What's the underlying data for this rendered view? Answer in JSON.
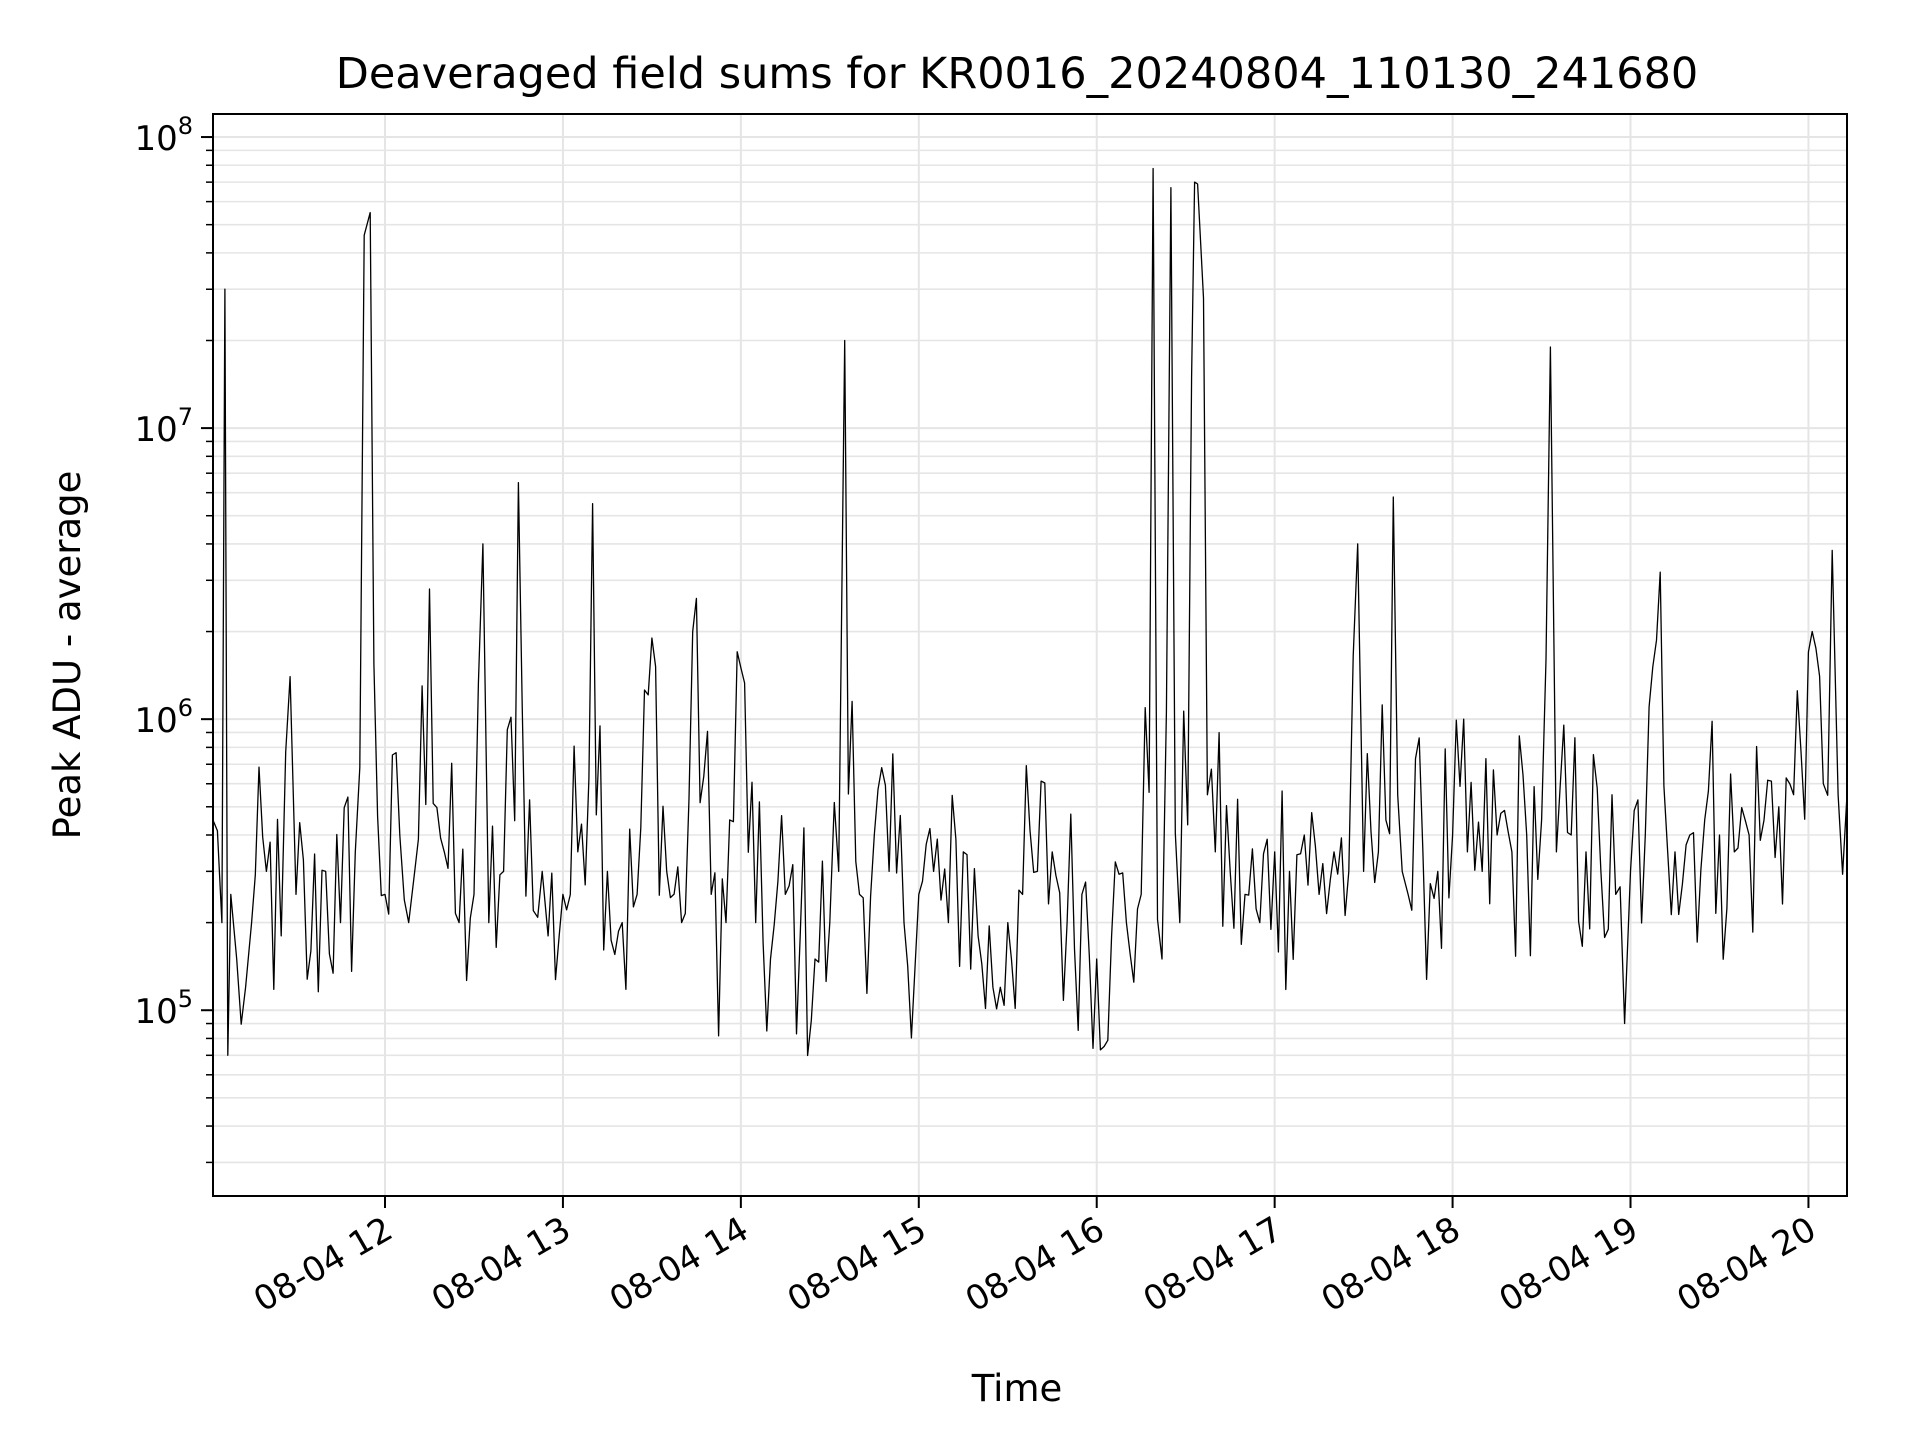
{
  "chart_data": {
    "type": "line",
    "title": "Deaveraged field sums for KR0016_20240804_110130_241680",
    "xlabel": "Time",
    "ylabel": "Peak ADU - average",
    "yscale": "log",
    "ylim": [
      23000,
      120000000
    ],
    "xlim": [
      "2024-08-04 11:02",
      "2024-08-04 20:13"
    ],
    "grid": true,
    "line_color": "#000000",
    "grid_color": "#e5e5e5",
    "x_ticks": [
      {
        "value": "2024-08-04 12:00",
        "label": "08-04 12"
      },
      {
        "value": "2024-08-04 13:00",
        "label": "08-04 13"
      },
      {
        "value": "2024-08-04 14:00",
        "label": "08-04 14"
      },
      {
        "value": "2024-08-04 15:00",
        "label": "08-04 15"
      },
      {
        "value": "2024-08-04 16:00",
        "label": "08-04 16"
      },
      {
        "value": "2024-08-04 17:00",
        "label": "08-04 17"
      },
      {
        "value": "2024-08-04 18:00",
        "label": "08-04 18"
      },
      {
        "value": "2024-08-04 19:00",
        "label": "08-04 19"
      },
      {
        "value": "2024-08-04 20:00",
        "label": "08-04 20"
      }
    ],
    "y_ticks": [
      {
        "value": 100000,
        "base": "10",
        "exp": "5"
      },
      {
        "value": 1000000,
        "base": "10",
        "exp": "6"
      },
      {
        "value": 10000000,
        "base": "10",
        "exp": "7"
      },
      {
        "value": 100000000,
        "base": "10",
        "exp": "8"
      }
    ],
    "series": [
      {
        "x": [
          "2024-08-04 11:02",
          "2024-08-04 11:05",
          "2024-08-04 11:06",
          "2024-08-04 11:07",
          "2024-08-04 11:08",
          "2024-08-04 11:10",
          "2024-08-04 11:13",
          "2024-08-04 11:15",
          "2024-08-04 11:20",
          "2024-08-04 11:25",
          "2024-08-04 11:28",
          "2024-08-04 11:30",
          "2024-08-04 11:35",
          "2024-08-04 11:40",
          "2024-08-04 11:45",
          "2024-08-04 11:50",
          "2024-08-04 11:53",
          "2024-08-04 11:55",
          "2024-08-04 12:00",
          "2024-08-04 12:05",
          "2024-08-04 12:08",
          "2024-08-04 12:10",
          "2024-08-04 12:15",
          "2024-08-04 12:20",
          "2024-08-04 12:25",
          "2024-08-04 12:30",
          "2024-08-04 12:33",
          "2024-08-04 12:35",
          "2024-08-04 12:40",
          "2024-08-04 12:45",
          "2024-08-04 12:50",
          "2024-08-04 12:53",
          "2024-08-04 12:55",
          "2024-08-04 13:00",
          "2024-08-04 13:05",
          "2024-08-04 13:10",
          "2024-08-04 13:15",
          "2024-08-04 13:20",
          "2024-08-04 13:25",
          "2024-08-04 13:30",
          "2024-08-04 13:35",
          "2024-08-04 13:40",
          "2024-08-04 13:45",
          "2024-08-04 13:50",
          "2024-08-04 13:55",
          "2024-08-04 14:00",
          "2024-08-04 14:05",
          "2024-08-04 14:10",
          "2024-08-04 14:15",
          "2024-08-04 14:20",
          "2024-08-04 14:25",
          "2024-08-04 14:30",
          "2024-08-04 14:33",
          "2024-08-04 14:35",
          "2024-08-04 14:40",
          "2024-08-04 14:45",
          "2024-08-04 14:50",
          "2024-08-04 14:55",
          "2024-08-04 15:00",
          "2024-08-04 15:05",
          "2024-08-04 15:10",
          "2024-08-04 15:15",
          "2024-08-04 15:20",
          "2024-08-04 15:25",
          "2024-08-04 15:30",
          "2024-08-04 15:35",
          "2024-08-04 15:40",
          "2024-08-04 15:45",
          "2024-08-04 15:50",
          "2024-08-04 15:55",
          "2024-08-04 16:00",
          "2024-08-04 16:05",
          "2024-08-04 16:10",
          "2024-08-04 16:15",
          "2024-08-04 16:19",
          "2024-08-04 16:22",
          "2024-08-04 16:25",
          "2024-08-04 16:28",
          "2024-08-04 16:32",
          "2024-08-04 16:33",
          "2024-08-04 16:34",
          "2024-08-04 16:36",
          "2024-08-04 16:40",
          "2024-08-04 16:45",
          "2024-08-04 16:50",
          "2024-08-04 16:55",
          "2024-08-04 17:00",
          "2024-08-04 17:05",
          "2024-08-04 17:10",
          "2024-08-04 17:15",
          "2024-08-04 17:20",
          "2024-08-04 17:25",
          "2024-08-04 17:28",
          "2024-08-04 17:30",
          "2024-08-04 17:35",
          "2024-08-04 17:40",
          "2024-08-04 17:43",
          "2024-08-04 17:45",
          "2024-08-04 17:50",
          "2024-08-04 17:55",
          "2024-08-04 18:00",
          "2024-08-04 18:05",
          "2024-08-04 18:10",
          "2024-08-04 18:15",
          "2024-08-04 18:20",
          "2024-08-04 18:25",
          "2024-08-04 18:30",
          "2024-08-04 18:33",
          "2024-08-04 18:35",
          "2024-08-04 18:40",
          "2024-08-04 18:45",
          "2024-08-04 18:50",
          "2024-08-04 18:55",
          "2024-08-04 18:58",
          "2024-08-04 19:00",
          "2024-08-04 19:05",
          "2024-08-04 19:10",
          "2024-08-04 19:15",
          "2024-08-04 19:20",
          "2024-08-04 19:25",
          "2024-08-04 19:30",
          "2024-08-04 19:35",
          "2024-08-04 19:40",
          "2024-08-04 19:45",
          "2024-08-04 19:50",
          "2024-08-04 19:55",
          "2024-08-04 20:00",
          "2024-08-04 20:05",
          "2024-08-04 20:08",
          "2024-08-04 20:10",
          "2024-08-04 20:13"
        ],
        "y": [
          450000,
          200000,
          30000000,
          70000,
          250000,
          150000,
          120000,
          200000,
          300000,
          180000,
          1400000,
          250000,
          160000,
          300000,
          200000,
          350000,
          46000000,
          55000000,
          250000,
          400000,
          200000,
          300000,
          2800000,
          350000,
          200000,
          250000,
          4000000,
          200000,
          300000,
          6500000,
          220000,
          300000,
          180000,
          250000,
          350000,
          5500000,
          300000,
          200000,
          250000,
          1900000,
          300000,
          200000,
          2600000,
          250000,
          200000,
          1500000,
          200000,
          150000,
          250000,
          180000,
          150000,
          200000,
          300000,
          20000000,
          250000,
          400000,
          300000,
          200000,
          250000,
          300000,
          200000,
          350000,
          180000,
          120000,
          200000,
          250000,
          300000,
          350000,
          200000,
          250000,
          150000,
          180000,
          200000,
          250000,
          78000000,
          150000,
          67000000,
          200000,
          15000000,
          70000000,
          69000000,
          28000000,
          350000,
          300000,
          250000,
          200000,
          350000,
          300000,
          400000,
          250000,
          350000,
          300000,
          4000000,
          300000,
          350000,
          5800000,
          300000,
          250000,
          350000,
          300000,
          400000,
          350000,
          300000,
          400000,
          350000,
          400000,
          450000,
          19000000,
          350000,
          400000,
          350000,
          300000,
          250000,
          90000,
          300000,
          400000,
          3200000,
          350000,
          400000,
          450000,
          400000,
          350000,
          400000,
          450000,
          500000,
          550000,
          1700000,
          600000,
          3800000,
          550000,
          550000
        ]
      }
    ]
  }
}
